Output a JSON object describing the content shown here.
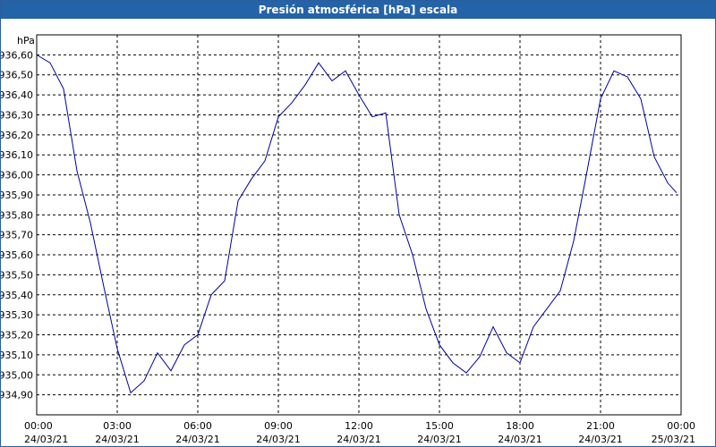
{
  "chart_data": {
    "type": "line",
    "title": "Presión atmosférica [hPa] escala",
    "y_label": "hPa",
    "x": [
      "2021-03-24T00:00",
      "2021-03-24T00:30",
      "2021-03-24T01:00",
      "2021-03-24T01:30",
      "2021-03-24T02:00",
      "2021-03-24T02:30",
      "2021-03-24T03:00",
      "2021-03-24T03:30",
      "2021-03-24T04:00",
      "2021-03-24T04:30",
      "2021-03-24T05:00",
      "2021-03-24T05:30",
      "2021-03-24T06:00",
      "2021-03-24T06:30",
      "2021-03-24T07:00",
      "2021-03-24T07:30",
      "2021-03-24T08:00",
      "2021-03-24T08:30",
      "2021-03-24T09:00",
      "2021-03-24T09:30",
      "2021-03-24T10:00",
      "2021-03-24T10:30",
      "2021-03-24T11:00",
      "2021-03-24T11:30",
      "2021-03-24T12:00",
      "2021-03-24T12:30",
      "2021-03-24T13:00",
      "2021-03-24T13:30",
      "2021-03-24T14:00",
      "2021-03-24T14:30",
      "2021-03-24T15:00",
      "2021-03-24T15:30",
      "2021-03-24T16:00",
      "2021-03-24T16:30",
      "2021-03-24T17:00",
      "2021-03-24T17:30",
      "2021-03-24T18:00",
      "2021-03-24T18:30",
      "2021-03-24T19:00",
      "2021-03-24T19:30",
      "2021-03-24T20:00",
      "2021-03-24T20:30",
      "2021-03-24T21:00",
      "2021-03-24T21:30",
      "2021-03-24T22:00",
      "2021-03-24T22:30",
      "2021-03-24T23:00",
      "2021-03-24T23:30",
      "2021-03-24T23:50"
    ],
    "series": [
      {
        "name": "Presión",
        "color": "#0000a0",
        "values": [
          936.6,
          936.56,
          936.43,
          936.02,
          935.76,
          935.44,
          935.13,
          934.91,
          934.97,
          935.11,
          935.02,
          935.15,
          935.2,
          935.4,
          935.47,
          935.87,
          935.98,
          936.07,
          936.29,
          936.36,
          936.45,
          936.56,
          936.47,
          936.52,
          936.4,
          936.29,
          936.31,
          935.8,
          935.6,
          935.33,
          935.15,
          935.06,
          935.01,
          935.09,
          935.24,
          935.11,
          935.06,
          935.24,
          935.33,
          935.42,
          935.67,
          936.02,
          936.38,
          936.52,
          936.49,
          936.38,
          936.09,
          935.96,
          935.91
        ]
      }
    ],
    "xlim": [
      "2021-03-24T00:00",
      "2021-03-25T00:00"
    ],
    "xticks": [
      {
        "value": "2021-03-24T00:00",
        "label": [
          "00:00",
          "24/03/21"
        ]
      },
      {
        "value": "2021-03-24T03:00",
        "label": [
          "03:00",
          "24/03/21"
        ]
      },
      {
        "value": "2021-03-24T06:00",
        "label": [
          "06:00",
          "24/03/21"
        ]
      },
      {
        "value": "2021-03-24T09:00",
        "label": [
          "09:00",
          "24/03/21"
        ]
      },
      {
        "value": "2021-03-24T12:00",
        "label": [
          "12:00",
          "24/03/21"
        ]
      },
      {
        "value": "2021-03-24T15:00",
        "label": [
          "15:00",
          "24/03/21"
        ]
      },
      {
        "value": "2021-03-24T18:00",
        "label": [
          "18:00",
          "24/03/21"
        ]
      },
      {
        "value": "2021-03-24T21:00",
        "label": [
          "21:00",
          "24/03/21"
        ]
      },
      {
        "value": "2021-03-25T00:00",
        "label": [
          "00:00",
          "25/03/21"
        ]
      }
    ],
    "ylim": [
      934.8,
      936.7
    ],
    "yticks": [
      {
        "value": 934.9,
        "label": "934,90"
      },
      {
        "value": 935.0,
        "label": "935,00"
      },
      {
        "value": 935.1,
        "label": "935,10"
      },
      {
        "value": 935.2,
        "label": "935,20"
      },
      {
        "value": 935.3,
        "label": "935,30"
      },
      {
        "value": 935.4,
        "label": "935,40"
      },
      {
        "value": 935.5,
        "label": "935,50"
      },
      {
        "value": 935.6,
        "label": "935,60"
      },
      {
        "value": 935.7,
        "label": "935,70"
      },
      {
        "value": 935.8,
        "label": "935,80"
      },
      {
        "value": 935.9,
        "label": "935,90"
      },
      {
        "value": 936.0,
        "label": "936,00"
      },
      {
        "value": 936.1,
        "label": "936,10"
      },
      {
        "value": 936.2,
        "label": "936,20"
      },
      {
        "value": 936.3,
        "label": "936,30"
      },
      {
        "value": 936.4,
        "label": "936,40"
      },
      {
        "value": 936.5,
        "label": "936,50"
      },
      {
        "value": 936.6,
        "label": "936,60"
      }
    ],
    "grid": true
  }
}
